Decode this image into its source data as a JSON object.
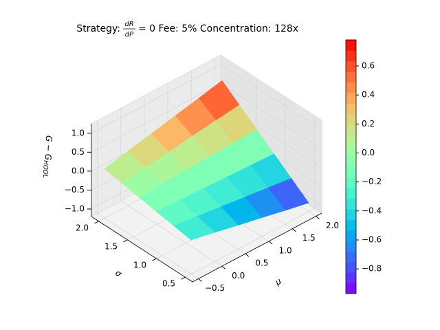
{
  "chart_data": {
    "type": "surface",
    "title": {
      "prefix": "Strategy:",
      "numerator": "dR",
      "denominator": "dP",
      "suffix": "= 0  Fee: 5%  Concentration: 128x"
    },
    "xlabel": "μ",
    "ylabel": "σ",
    "zlabel": "G − G",
    "zlabel_sub": "HODL",
    "x": [
      -0.5,
      0.0,
      0.5,
      1.0,
      1.5,
      2.0
    ],
    "y": [
      0.5,
      0.8,
      1.1,
      1.4,
      1.7,
      2.0
    ],
    "z": [
      [
        -0.3,
        -0.43,
        -0.57,
        -0.7,
        -0.84,
        -0.97
      ],
      [
        -0.22,
        -0.3,
        -0.38,
        -0.46,
        -0.54,
        -0.62
      ],
      [
        -0.14,
        -0.17,
        -0.19,
        -0.22,
        -0.24,
        -0.27
      ],
      [
        -0.06,
        -0.03,
        0.0,
        0.02,
        0.05,
        0.08
      ],
      [
        0.02,
        0.1,
        0.18,
        0.27,
        0.35,
        0.43
      ],
      [
        0.1,
        0.24,
        0.37,
        0.51,
        0.64,
        0.78
      ]
    ],
    "xlim": [
      -0.625,
      2.125
    ],
    "ylim": [
      0.375,
      2.125
    ],
    "zlim": [
      -1.2,
      1.25
    ],
    "xticks": [
      {
        "value": -0.5,
        "label": "−0.5"
      },
      {
        "value": 0,
        "label": "0.0"
      },
      0.5,
      {
        "value": 1,
        "label": "1.0"
      },
      1.5,
      {
        "value": 2,
        "label": "2.0"
      }
    ],
    "yticks": [
      0.5,
      {
        "value": 1,
        "label": "1.0"
      },
      1.5,
      {
        "value": 2,
        "label": "2.0"
      }
    ],
    "zticks": [
      {
        "value": -1,
        "label": "−1.0"
      },
      {
        "value": -0.5,
        "label": "−0.5"
      },
      {
        "value": 0,
        "label": "0.0"
      },
      0.5,
      {
        "value": 1,
        "label": "1.0"
      }
    ],
    "colormap": "rainbow",
    "clim": [
      -0.97,
      0.78
    ],
    "cticks": [
      {
        "value": -0.8,
        "label": "−0.8"
      },
      {
        "value": -0.6,
        "label": "−0.6"
      },
      {
        "value": -0.4,
        "label": "−0.4"
      },
      {
        "value": -0.2,
        "label": "−0.2"
      },
      {
        "value": 0,
        "label": "0.0"
      },
      0.2,
      0.4,
      0.6
    ],
    "grid": true
  }
}
